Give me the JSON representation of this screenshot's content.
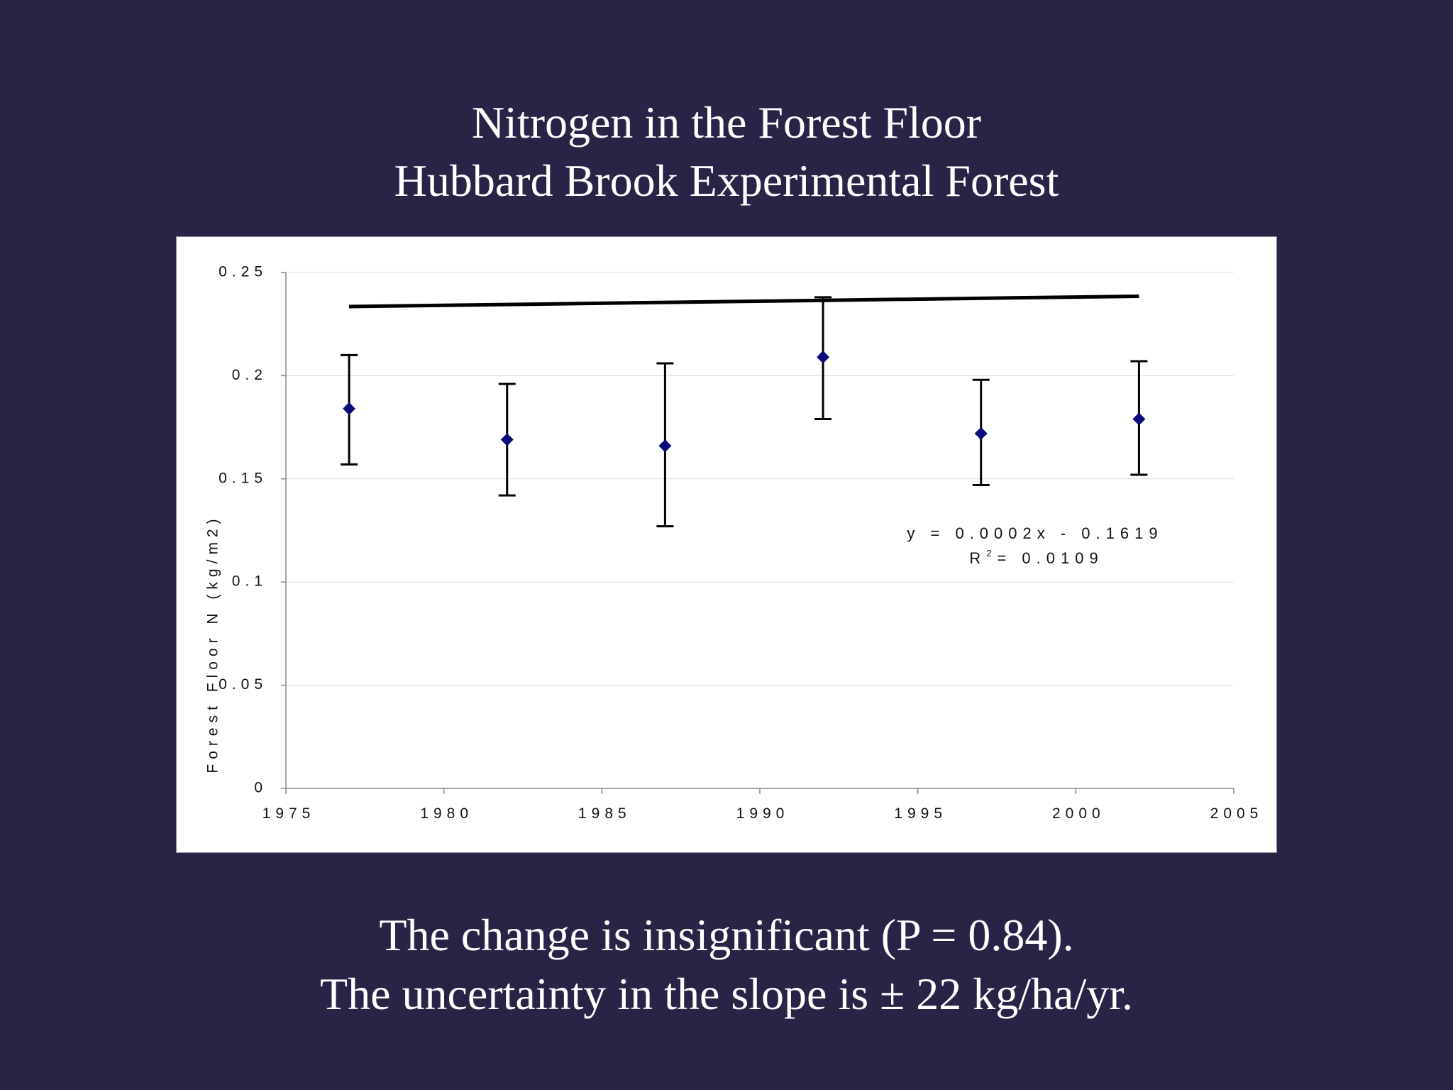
{
  "slide": {
    "title_line1": "Nitrogen in the Forest Floor",
    "title_line2": "Hubbard Brook Experimental Forest",
    "footer_line1": "The change is insignificant (P = 0.84).",
    "footer_line2": "The uncertainty in the slope is ± 22 kg/ha/yr."
  },
  "colors": {
    "background": "#292446",
    "marker": "#0b0b7a",
    "trendline": "#000000"
  },
  "chart_data": {
    "type": "scatter",
    "ylabel": "Forest Floor N (kg/m2)",
    "xlim": [
      1975,
      2005
    ],
    "ylim": [
      0,
      0.25
    ],
    "x_ticks": [
      1975,
      1980,
      1985,
      1990,
      1995,
      2000,
      2005
    ],
    "y_ticks": [
      0,
      0.05,
      0.1,
      0.15,
      0.2,
      0.25
    ],
    "x_tick_labels": [
      "1975",
      "1980",
      "1985",
      "1990",
      "1995",
      "2000",
      "2005"
    ],
    "y_tick_labels": [
      "0",
      "0.05",
      "0.1",
      "0.15",
      "0.2",
      "0.25"
    ],
    "grid": true,
    "marker": "diamond",
    "points": [
      {
        "x": 1977,
        "y": 0.184,
        "err_low": 0.157,
        "err_high": 0.21
      },
      {
        "x": 1982,
        "y": 0.169,
        "err_low": 0.142,
        "err_high": 0.196
      },
      {
        "x": 1987,
        "y": 0.166,
        "err_low": 0.127,
        "err_high": 0.206
      },
      {
        "x": 1992,
        "y": 0.209,
        "err_low": 0.179,
        "err_high": 0.238
      },
      {
        "x": 1997,
        "y": 0.172,
        "err_low": 0.147,
        "err_high": 0.198
      },
      {
        "x": 2002,
        "y": 0.179,
        "err_low": 0.152,
        "err_high": 0.207
      }
    ],
    "trendline": {
      "slope": 0.0002,
      "intercept": -0.1619,
      "x_range": [
        1977,
        2002
      ],
      "equation_label": "y = 0.0002x - 0.1619",
      "r2_prefix": "R",
      "r2_superscript": "2",
      "r2_value": "= 0.0109"
    }
  }
}
